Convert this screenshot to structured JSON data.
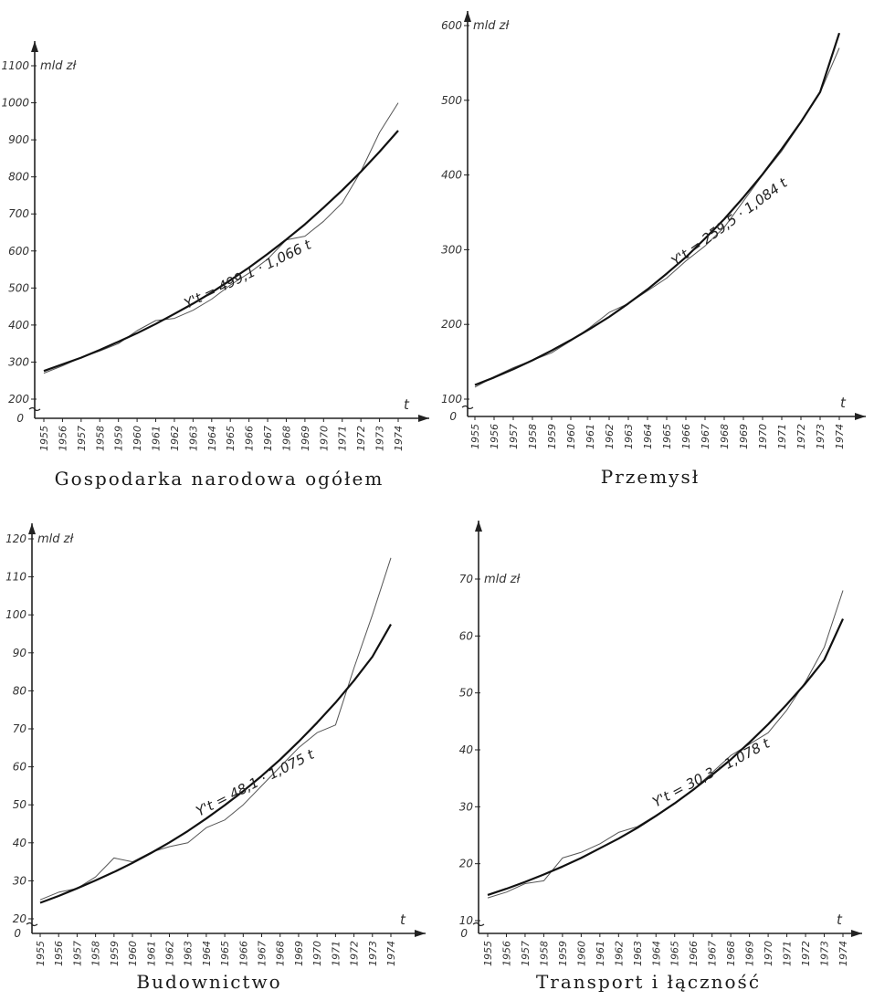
{
  "chart_data": [
    {
      "type": "line",
      "caption": "Gospodarka narodowa ogółem",
      "unit": "mld zł",
      "xaxis_label": "t",
      "zero_label": "0",
      "formula": "Y't = 499,1 · 1,066 t",
      "categories": [
        "1955",
        "1956",
        "1957",
        "1958",
        "1959",
        "1960",
        "1961",
        "1962",
        "1963",
        "1964",
        "1965",
        "1966",
        "1967",
        "1968",
        "1969",
        "1970",
        "1971",
        "1972",
        "1973",
        "1974"
      ],
      "yticks": [
        200,
        300,
        400,
        500,
        600,
        700,
        800,
        900,
        1000,
        1100
      ],
      "ylim": [
        200,
        1100
      ],
      "series": [
        {
          "values": [
            270,
            290,
            312,
            330,
            350,
            385,
            412,
            418,
            440,
            470,
            508,
            540,
            578,
            630,
            640,
            680,
            730,
            815,
            920,
            1000
          ]
        },
        {
          "values": [
            276,
            294,
            312,
            333,
            355,
            378,
            403,
            430,
            458,
            488,
            521,
            555,
            592,
            631,
            672,
            717,
            764,
            814,
            868,
            925
          ]
        }
      ]
    },
    {
      "type": "line",
      "caption": "Przemysł",
      "unit": "mld zł",
      "xaxis_label": "t",
      "zero_label": "0",
      "formula": "Y't = 259,5 · 1,084 t",
      "categories": [
        "1955",
        "1956",
        "1957",
        "1958",
        "1959",
        "1960",
        "1961",
        "1962",
        "1963",
        "1964",
        "1965",
        "1966",
        "1967",
        "1968",
        "1969",
        "1970",
        "1971",
        "1972",
        "1973",
        "1974"
      ],
      "yticks": [
        100,
        200,
        300,
        400,
        500,
        600
      ],
      "ylim": [
        100,
        600
      ],
      "series": [
        {
          "values": [
            116,
            130,
            142,
            152,
            162,
            178,
            196,
            216,
            228,
            245,
            262,
            285,
            305,
            330,
            365,
            400,
            432,
            470,
            510,
            570
          ]
        },
        {
          "values": [
            119,
            129,
            140,
            152,
            165,
            179,
            194,
            210,
            228,
            247,
            268,
            290,
            315,
            341,
            370,
            401,
            435,
            471,
            511,
            590
          ]
        }
      ]
    },
    {
      "type": "line",
      "caption": "Budownictwo",
      "unit": "mld zł",
      "xaxis_label": "t",
      "zero_label": "0",
      "formula": "Y't = 48,1 · 1,075 t",
      "categories": [
        "1955",
        "1956",
        "1957",
        "1958",
        "1959",
        "1960",
        "1961",
        "1962",
        "1963",
        "1964",
        "1965",
        "1966",
        "1967",
        "1968",
        "1969",
        "1970",
        "1971",
        "1972",
        "1973",
        "1974"
      ],
      "yticks": [
        20,
        30,
        40,
        50,
        60,
        70,
        80,
        90,
        100,
        110,
        120
      ],
      "ylim": [
        20,
        120
      ],
      "series": [
        {
          "values": [
            25,
            27,
            28,
            31,
            36,
            35,
            37.5,
            39,
            40,
            44,
            46,
            50,
            55,
            60,
            65,
            69,
            71,
            86,
            100,
            115
          ]
        },
        {
          "values": [
            24.2,
            26,
            28,
            30.1,
            32.3,
            34.7,
            37.3,
            40.1,
            43.1,
            46.4,
            49.9,
            53.6,
            57.6,
            61.9,
            66.6,
            71.6,
            76.9,
            82.7,
            89,
            97.5
          ]
        }
      ]
    },
    {
      "type": "line",
      "caption": "Transport i łączność",
      "unit": "mld zł",
      "xaxis_label": "t",
      "zero_label": "0",
      "formula": "Y't = 30,3 · 1,078 t",
      "categories": [
        "1955",
        "1956",
        "1957",
        "1958",
        "1959",
        "1960",
        "1961",
        "1962",
        "1963",
        "1964",
        "1965",
        "1966",
        "1967",
        "1968",
        "1969",
        "1970",
        "1971",
        "1972",
        "1973",
        "1974"
      ],
      "yticks": [
        10,
        20,
        30,
        40,
        50,
        60,
        70
      ],
      "ylim": [
        10,
        70
      ],
      "series": [
        {
          "values": [
            14,
            15,
            16.5,
            17,
            21,
            22,
            23.5,
            25.5,
            26.5,
            28.5,
            30.5,
            33,
            36,
            39,
            41,
            43,
            47,
            52,
            58,
            68
          ]
        },
        {
          "values": [
            14.5,
            15.6,
            16.8,
            18.1,
            19.5,
            21,
            22.7,
            24.4,
            26.3,
            28.4,
            30.6,
            33,
            35.6,
            38.3,
            41.3,
            44.5,
            48,
            51.7,
            55.8,
            63
          ]
        }
      ]
    }
  ]
}
